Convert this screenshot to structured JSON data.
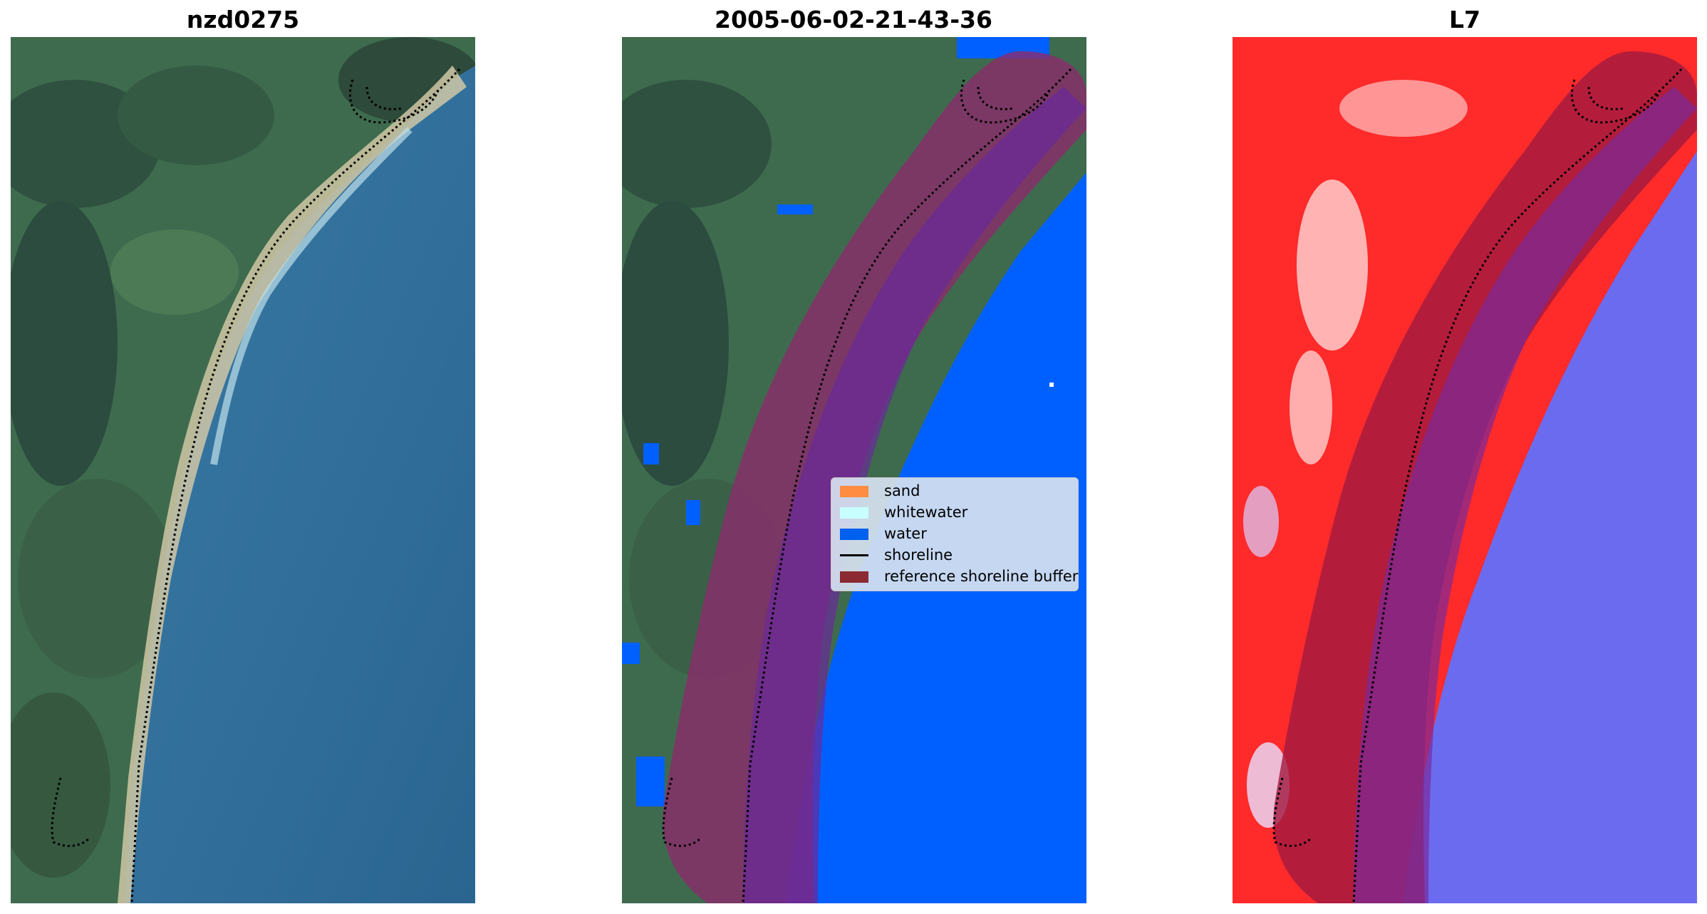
{
  "panels": [
    {
      "title": "nzd0275"
    },
    {
      "title": "2005-06-02-21-43-36"
    },
    {
      "title": "L7"
    }
  ],
  "legend": {
    "items": [
      {
        "label": "sand",
        "color": "#ff8c40"
      },
      {
        "label": "whitewater",
        "color": "#c8ffff"
      },
      {
        "label": "water",
        "color": "#0060f0"
      },
      {
        "label": "shoreline",
        "color": "#000000"
      },
      {
        "label": "reference shoreline buffer",
        "color": "#8b2a32"
      }
    ]
  },
  "colors": {
    "land_green": "#3f6f52",
    "sea_blue": "#2f6a96",
    "classified_water": "#0060ff",
    "buffer": "#7a2f80",
    "buffer_land": "#a03a60",
    "l7_land": "#ff2a2a",
    "l7_water": "#6b6bf0"
  }
}
